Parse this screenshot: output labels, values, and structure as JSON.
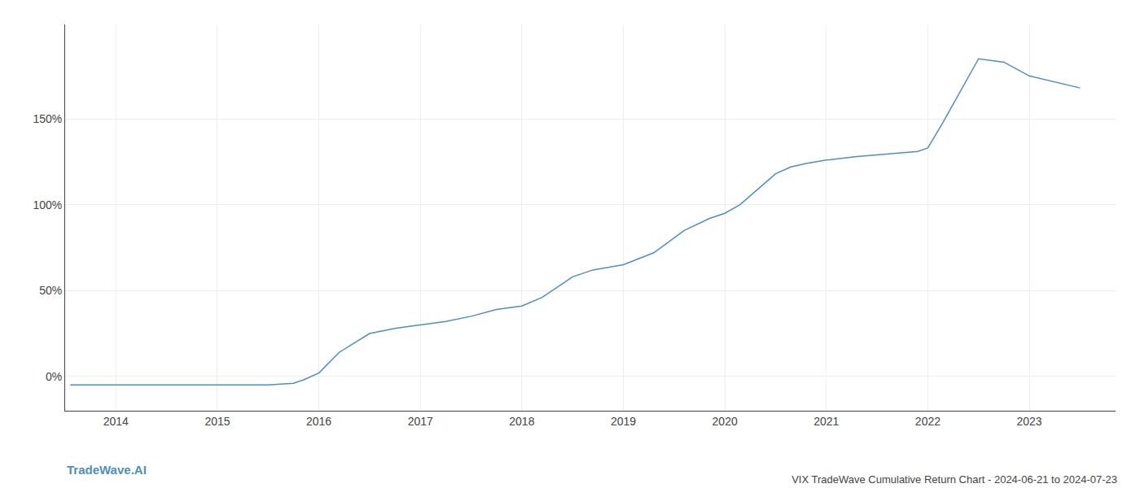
{
  "chart_data": {
    "type": "line",
    "title": "VIX TradeWave Cumulative Return Chart - 2024-06-21 to 2024-07-23",
    "annotations": [
      "TradeWave.AI"
    ],
    "x": [
      2013.55,
      2014.0,
      2014.5,
      2015.0,
      2015.1,
      2015.5,
      2015.75,
      2015.85,
      2016.0,
      2016.2,
      2016.5,
      2016.75,
      2017.0,
      2017.25,
      2017.5,
      2017.75,
      2018.0,
      2018.2,
      2018.5,
      2018.7,
      2019.0,
      2019.3,
      2019.6,
      2019.85,
      2020.0,
      2020.15,
      2020.5,
      2020.65,
      2020.8,
      2021.0,
      2021.3,
      2021.5,
      2021.75,
      2021.9,
      2022.0,
      2022.15,
      2022.5,
      2022.75,
      2023.0,
      2023.5
    ],
    "values": [
      -5,
      -5,
      -5,
      -5,
      -5,
      -5,
      -4,
      -2,
      2,
      14,
      25,
      28,
      30,
      32,
      35,
      39,
      41,
      46,
      58,
      62,
      65,
      72,
      85,
      92,
      95,
      100,
      118,
      122,
      124,
      126,
      128,
      129,
      130,
      131,
      133,
      148,
      185,
      183,
      175,
      168
    ],
    "color": "#4a90c4",
    "xlim": [
      2013.5,
      2023.85
    ],
    "ylim": [
      -20,
      205
    ],
    "xticks": [
      2014,
      2015,
      2016,
      2017,
      2018,
      2019,
      2020,
      2021,
      2022,
      2023
    ],
    "yticks": [
      {
        "value": 0,
        "label": "0%"
      },
      {
        "value": 50,
        "label": "50%"
      },
      {
        "value": 100,
        "label": "100%"
      },
      {
        "value": 150,
        "label": "150%"
      }
    ],
    "grid": true
  }
}
